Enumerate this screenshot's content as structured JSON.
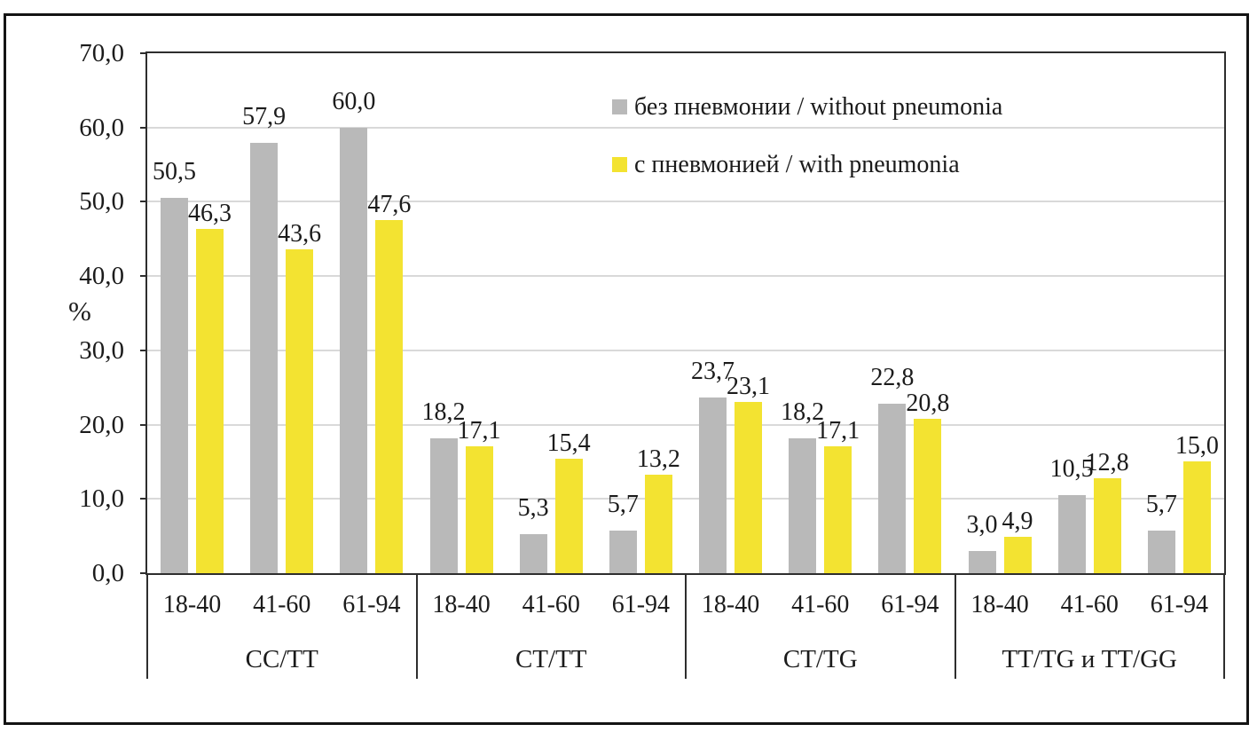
{
  "figure": {
    "background": "#ffffff",
    "frame_color": "#141414",
    "text_color": "#1b1b1b"
  },
  "chart_data": {
    "type": "bar",
    "title": "",
    "xlabel": "",
    "ylabel": "%",
    "ylim": [
      0,
      70
    ],
    "grid": true,
    "gridline_color": "#d9d9d9",
    "axis_color": "#2e2e2e",
    "legend_position": "top-right-inside",
    "decimal_separator": ",",
    "yticks": [
      {
        "v": 0,
        "label": "0,0"
      },
      {
        "v": 10,
        "label": "10,0"
      },
      {
        "v": 20,
        "label": "20,0"
      },
      {
        "v": 30,
        "label": "30,0"
      },
      {
        "v": 40,
        "label": "40,0"
      },
      {
        "v": 50,
        "label": "50,0"
      },
      {
        "v": 60,
        "label": "60,0"
      },
      {
        "v": 70,
        "label": "70,0"
      }
    ],
    "series": [
      {
        "id": "without",
        "name": "без пневмонии / without pneumonia",
        "color": "#b9b9b9"
      },
      {
        "id": "with",
        "name": "с пневмонией  /  with pneumonia",
        "color": "#f3e331"
      }
    ],
    "groups": [
      {
        "label": "CC/TT",
        "categories": [
          "18-40",
          "41-60",
          "61-94"
        ],
        "values": {
          "without": [
            50.5,
            57.9,
            60.0
          ],
          "with": [
            46.3,
            43.6,
            47.6
          ]
        },
        "value_labels": {
          "without": [
            "50,5",
            "57,9",
            "60,0"
          ],
          "with": [
            "46,3",
            "43,6",
            "47,6"
          ]
        }
      },
      {
        "label": "CT/TT",
        "categories": [
          "18-40",
          "41-60",
          "61-94"
        ],
        "values": {
          "without": [
            18.2,
            5.3,
            5.7
          ],
          "with": [
            17.1,
            15.4,
            13.2
          ]
        },
        "value_labels": {
          "without": [
            "18,2",
            "5,3",
            "5,7"
          ],
          "with": [
            "17,1",
            "15,4",
            "13,2"
          ]
        }
      },
      {
        "label": "CT/TG",
        "categories": [
          "18-40",
          "41-60",
          "61-94"
        ],
        "values": {
          "without": [
            23.7,
            18.2,
            22.8
          ],
          "with": [
            23.1,
            17.1,
            20.8
          ]
        },
        "value_labels": {
          "without": [
            "23,7",
            "18,2",
            "22,8"
          ],
          "with": [
            "23,1",
            "17,1",
            "20,8"
          ]
        }
      },
      {
        "label": "TT/TG и TT/GG",
        "categories": [
          "18-40",
          "41-60",
          "61-94"
        ],
        "values": {
          "without": [
            3.0,
            10.5,
            5.7
          ],
          "with": [
            4.9,
            12.8,
            15.0
          ]
        },
        "value_labels": {
          "without": [
            "3,0",
            "10,5",
            "5,7"
          ],
          "with": [
            "4,9",
            "12,8",
            "15,0"
          ]
        }
      }
    ]
  }
}
